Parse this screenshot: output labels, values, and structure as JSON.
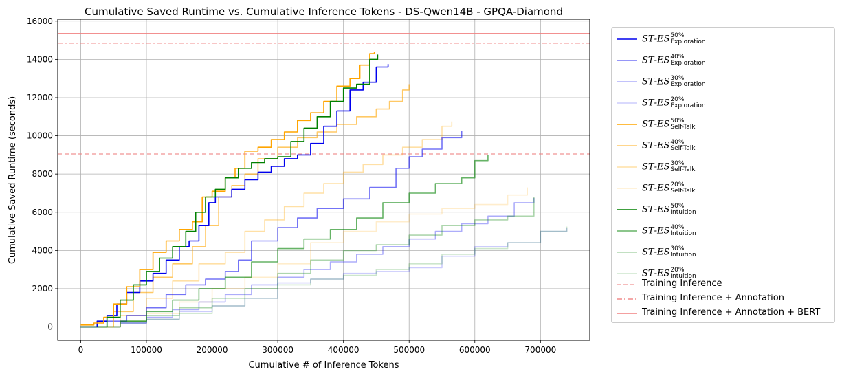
{
  "chart_data": {
    "type": "line",
    "title": "Cumulative Saved Runtime vs. Cumulative Inference Tokens - DS-Qwen14B - GPQA-Diamond",
    "xlabel": "Cumulative # of Inference Tokens",
    "ylabel": "Cumulative Saved Runtime (seconds)",
    "xlim": [
      -35000,
      775000
    ],
    "ylim": [
      -700,
      16100
    ],
    "xticks": [
      0,
      100000,
      200000,
      300000,
      400000,
      500000,
      600000,
      700000
    ],
    "yticks": [
      0,
      2000,
      4000,
      6000,
      8000,
      10000,
      12000,
      14000,
      16000
    ],
    "xtick_labels": [
      "0",
      "100000",
      "200000",
      "300000",
      "400000",
      "500000",
      "600000",
      "700000"
    ],
    "ytick_labels": [
      "0",
      "2000",
      "4000",
      "6000",
      "8000",
      "10000",
      "12000",
      "14000",
      "16000"
    ],
    "grid": true,
    "legend_position": "outside-right",
    "series": [
      {
        "name_main": "ST-ES",
        "pct": "50%",
        "sub": "Exploration",
        "color": "#0000ee",
        "opacity": 1.0,
        "x": [
          0,
          20000,
          25000,
          40000,
          55000,
          70000,
          90000,
          110000,
          130000,
          150000,
          165000,
          180000,
          195000,
          205000,
          230000,
          250000,
          270000,
          290000,
          310000,
          330000,
          350000,
          370000,
          390000,
          410000,
          430000,
          450000,
          468000
        ],
        "y": [
          0,
          0,
          300,
          600,
          1200,
          1800,
          2400,
          2800,
          3500,
          4200,
          4500,
          5300,
          6500,
          6800,
          7200,
          7700,
          8100,
          8400,
          8800,
          9000,
          9600,
          10500,
          11300,
          12400,
          12800,
          13600,
          13750
        ]
      },
      {
        "name_main": "ST-ES",
        "pct": "40%",
        "sub": "Exploration",
        "color": "#0000ee",
        "opacity": 0.55,
        "x": [
          0,
          20000,
          40000,
          70000,
          100000,
          130000,
          160000,
          190000,
          220000,
          240000,
          260000,
          300000,
          330000,
          360000,
          400000,
          440000,
          480000,
          500000,
          520000,
          550000,
          580000
        ],
        "y": [
          0,
          0,
          300,
          600,
          1000,
          1700,
          2200,
          2500,
          2900,
          3500,
          4500,
          5200,
          5700,
          6200,
          6700,
          7300,
          8300,
          8900,
          9300,
          9900,
          10250
        ]
      },
      {
        "name_main": "ST-ES",
        "pct": "30%",
        "sub": "Exploration",
        "color": "#0000ee",
        "opacity": 0.32,
        "x": [
          0,
          20000,
          60000,
          100000,
          140000,
          180000,
          220000,
          260000,
          300000,
          340000,
          380000,
          420000,
          460000,
          500000,
          540000,
          580000,
          620000,
          660000,
          690000
        ],
        "y": [
          0,
          0,
          200,
          500,
          900,
          1300,
          1700,
          2200,
          2600,
          3000,
          3400,
          3800,
          4200,
          4600,
          5000,
          5400,
          5800,
          6500,
          6750
        ]
      },
      {
        "name_main": "ST-ES",
        "pct": "20%",
        "sub": "Exploration",
        "color": "#0000ee",
        "opacity": 0.2,
        "x": [
          0,
          20000,
          60000,
          100000,
          150000,
          200000,
          250000,
          300000,
          350000,
          400000,
          450000,
          500000,
          550000,
          600000,
          650000,
          700000,
          740000
        ],
        "y": [
          0,
          0,
          200,
          400,
          800,
          1100,
          1500,
          2300,
          2500,
          2800,
          2900,
          3100,
          3700,
          4200,
          4400,
          5000,
          5200
        ]
      },
      {
        "name_main": "ST-ES",
        "pct": "50%",
        "sub": "Self-Talk",
        "color": "#ffa500",
        "opacity": 1.0,
        "x": [
          0,
          20000,
          35000,
          50000,
          70000,
          90000,
          110000,
          130000,
          150000,
          170000,
          185000,
          200000,
          220000,
          235000,
          250000,
          270000,
          290000,
          310000,
          330000,
          350000,
          370000,
          390000,
          410000,
          425000,
          440000,
          447000
        ],
        "y": [
          100,
          200,
          500,
          1200,
          2100,
          3000,
          3900,
          4500,
          5100,
          5500,
          6800,
          7100,
          7800,
          8300,
          9200,
          9400,
          9800,
          10200,
          10800,
          11200,
          11800,
          12600,
          13000,
          13700,
          14300,
          14400
        ]
      },
      {
        "name_main": "ST-ES",
        "pct": "40%",
        "sub": "Self-Talk",
        "color": "#ffa500",
        "opacity": 0.6,
        "x": [
          0,
          20000,
          50000,
          80000,
          110000,
          140000,
          170000,
          190000,
          210000,
          230000,
          250000,
          270000,
          300000,
          330000,
          360000,
          390000,
          420000,
          450000,
          470000,
          490000,
          500000
        ],
        "y": [
          0,
          0,
          800,
          1800,
          2600,
          3300,
          4200,
          5300,
          6800,
          7400,
          8000,
          8800,
          9400,
          9900,
          10200,
          10600,
          11000,
          11400,
          11800,
          12400,
          12700
        ]
      },
      {
        "name_main": "ST-ES",
        "pct": "30%",
        "sub": "Self-Talk",
        "color": "#ffa500",
        "opacity": 0.35,
        "x": [
          0,
          20000,
          60000,
          100000,
          140000,
          180000,
          220000,
          250000,
          280000,
          310000,
          340000,
          370000,
          400000,
          430000,
          460000,
          490000,
          520000,
          550000,
          565000
        ],
        "y": [
          0,
          0,
          600,
          1500,
          2400,
          3300,
          3900,
          5000,
          5600,
          6300,
          7000,
          7500,
          8100,
          8500,
          9000,
          9400,
          9800,
          10500,
          10750
        ]
      },
      {
        "name_main": "ST-ES",
        "pct": "20%",
        "sub": "Self-Talk",
        "color": "#ffa500",
        "opacity": 0.2,
        "x": [
          0,
          20000,
          60000,
          100000,
          150000,
          200000,
          250000,
          300000,
          350000,
          400000,
          450000,
          500000,
          550000,
          600000,
          650000,
          680000
        ],
        "y": [
          0,
          0,
          300,
          700,
          1300,
          2000,
          2600,
          3300,
          4400,
          5000,
          5500,
          5900,
          6200,
          6400,
          6900,
          7300
        ]
      },
      {
        "name_main": "ST-ES",
        "pct": "50%",
        "sub": "Intuition",
        "color": "#008000",
        "opacity": 1.0,
        "x": [
          0,
          20000,
          40000,
          60000,
          80000,
          100000,
          120000,
          140000,
          160000,
          175000,
          190000,
          205000,
          220000,
          240000,
          260000,
          280000,
          300000,
          320000,
          340000,
          360000,
          380000,
          400000,
          420000,
          440000,
          452000
        ],
        "y": [
          0,
          0,
          500,
          1400,
          2200,
          2900,
          3600,
          4200,
          5000,
          6000,
          6800,
          7200,
          7800,
          8300,
          8600,
          8800,
          8900,
          9700,
          10400,
          11000,
          11800,
          12500,
          12700,
          14000,
          14250
        ]
      },
      {
        "name_main": "ST-ES",
        "pct": "40%",
        "sub": "Intuition",
        "color": "#008000",
        "opacity": 0.6,
        "x": [
          0,
          20000,
          60000,
          100000,
          140000,
          180000,
          220000,
          260000,
          300000,
          340000,
          380000,
          420000,
          460000,
          500000,
          540000,
          580000,
          600000,
          620000
        ],
        "y": [
          0,
          0,
          300,
          800,
          1400,
          2000,
          2600,
          3400,
          4100,
          4600,
          5100,
          5700,
          6500,
          7000,
          7500,
          7800,
          8700,
          9000
        ]
      },
      {
        "name_main": "ST-ES",
        "pct": "30%",
        "sub": "Intuition",
        "color": "#008000",
        "opacity": 0.32,
        "x": [
          0,
          20000,
          60000,
          100000,
          150000,
          200000,
          250000,
          300000,
          350000,
          400000,
          450000,
          500000,
          550000,
          600000,
          650000,
          690000
        ],
        "y": [
          0,
          0,
          300,
          600,
          1000,
          1500,
          2000,
          2800,
          3500,
          4000,
          4300,
          4800,
          5300,
          5600,
          5800,
          6800
        ]
      },
      {
        "name_main": "ST-ES",
        "pct": "20%",
        "sub": "Intuition",
        "color": "#008000",
        "opacity": 0.2,
        "x": [
          0,
          20000,
          60000,
          100000,
          150000,
          200000,
          250000,
          300000,
          350000,
          400000,
          450000,
          500000,
          550000,
          600000,
          650000,
          700000,
          740000
        ],
        "y": [
          0,
          0,
          200,
          400,
          700,
          1100,
          1500,
          2200,
          2500,
          2700,
          3000,
          3300,
          3800,
          4100,
          4400,
          5000,
          5250
        ]
      }
    ],
    "hlines": [
      {
        "label": "Training Inference",
        "y": 9050,
        "color": "#f08080",
        "opacity": 0.7,
        "dash": "dashed"
      },
      {
        "label": "Training Inference + Annotation",
        "y": 14850,
        "color": "#f08080",
        "opacity": 0.9,
        "dash": "dashdot"
      },
      {
        "label": "Training Inference + Annotation + BERT",
        "y": 15350,
        "color": "#f08080",
        "opacity": 1.0,
        "dash": "solid"
      }
    ]
  }
}
